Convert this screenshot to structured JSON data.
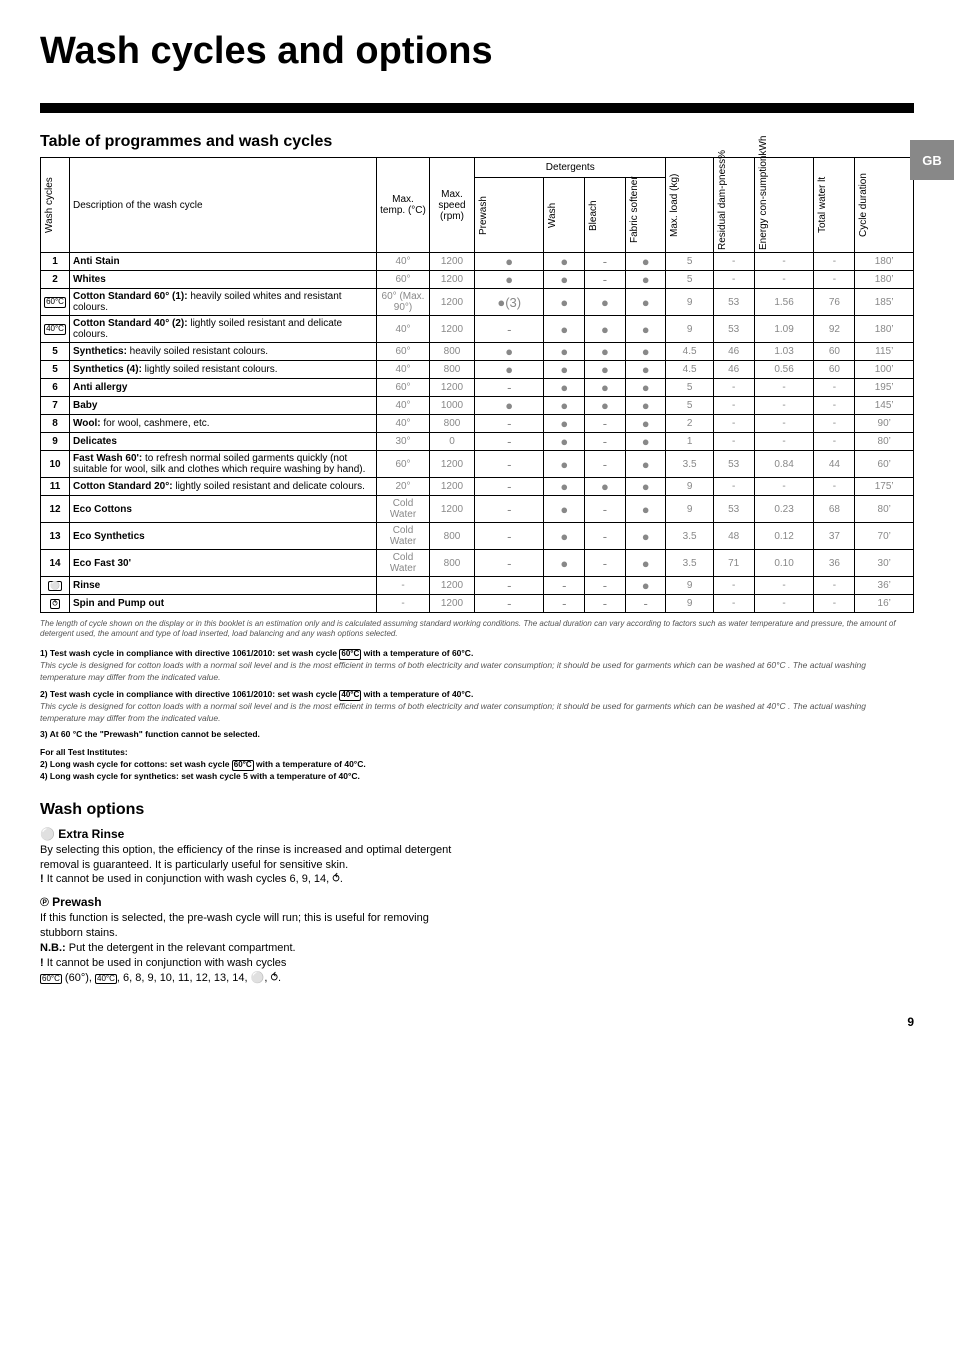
{
  "tab": "GB",
  "title": "Wash cycles and options",
  "section1_title": "Table of programmes and wash cycles",
  "headers": {
    "wash_cycles": "Wash cycles",
    "description": "Description of the wash cycle",
    "max_temp": "Max. temp. (°C)",
    "max_speed": "Max. speed (rpm)",
    "detergents": "Detergents",
    "prewash": "Prewash",
    "wash": "Wash",
    "bleach": "Bleach",
    "fabric_softener": "Fabric softener",
    "max_load": "Max. load (kg)",
    "residual": "Residual dam-pness%",
    "energy": "Energy con-sumptionkWh",
    "water": "Total water lt",
    "duration": "Cycle duration"
  },
  "rows": [
    {
      "n": "1",
      "d": "Anti Stain",
      "t": "40°",
      "s": "1200",
      "pw": "●",
      "w": "●",
      "bl": "-",
      "fs": "●",
      "ml": "5",
      "rd": "-",
      "en": "-",
      "wa": "-",
      "du": "180’",
      "gray": true,
      "bold": true
    },
    {
      "n": "2",
      "d": "Whites",
      "t": "60°",
      "s": "1200",
      "pw": "●",
      "w": "●",
      "bl": "-",
      "fs": "●",
      "ml": "5",
      "rd": "-",
      "en": "-",
      "wa": "-",
      "du": "180’",
      "gray": true,
      "bold": true
    },
    {
      "n": "60°C",
      "sym": true,
      "d": "<b>Cotton Standard 60° (1):</b> heavily soiled whites and resistant colours.",
      "t": "60° (Max. 90°)",
      "s": "1200",
      "pw": "●(3)",
      "w": "●",
      "bl": "●",
      "fs": "●",
      "ml": "9",
      "rd": "53",
      "en": "1.56",
      "wa": "76",
      "du": "185’",
      "gray": true
    },
    {
      "n": "40°C",
      "sym": true,
      "d": "<b>Cotton Standard 40° (2):</b> lightly soiled resistant and delicate colours.",
      "t": "40°",
      "s": "1200",
      "pw": "-",
      "w": "●",
      "bl": "●",
      "fs": "●",
      "ml": "9",
      "rd": "53",
      "en": "1.09",
      "wa": "92",
      "du": "180’",
      "gray": true
    },
    {
      "n": "5",
      "d": "<b>Synthetics:</b> heavily soiled resistant colours.",
      "t": "60°",
      "s": "800",
      "pw": "●",
      "w": "●",
      "bl": "●",
      "fs": "●",
      "ml": "4.5",
      "rd": "46",
      "en": "1.03",
      "wa": "60",
      "du": "115’",
      "gray": true
    },
    {
      "n": "5",
      "d": "<b>Synthetics (4):</b> lightly soiled resistant colours.",
      "t": "40°",
      "s": "800",
      "pw": "●",
      "w": "●",
      "bl": "●",
      "fs": "●",
      "ml": "4.5",
      "rd": "46",
      "en": "0.56",
      "wa": "60",
      "du": "100’",
      "gray": true
    },
    {
      "n": "6",
      "d": "Anti allergy",
      "t": "60°",
      "s": "1200",
      "pw": "-",
      "w": "●",
      "bl": "●",
      "fs": "●",
      "ml": "5",
      "rd": "-",
      "en": "-",
      "wa": "-",
      "du": "195’",
      "gray": true,
      "bold": true
    },
    {
      "n": "7",
      "d": "Baby",
      "t": "40°",
      "s": "1000",
      "pw": "●",
      "w": "●",
      "bl": "●",
      "fs": "●",
      "ml": "5",
      "rd": "-",
      "en": "-",
      "wa": "-",
      "du": "145’",
      "gray": true,
      "bold": true
    },
    {
      "n": "8",
      "d": "<b>Wool:</b> for wool, cashmere, etc.",
      "t": "40°",
      "s": "800",
      "pw": "-",
      "w": "●",
      "bl": "-",
      "fs": "●",
      "ml": "2",
      "rd": "-",
      "en": "-",
      "wa": "-",
      "du": "90’",
      "gray": true
    },
    {
      "n": "9",
      "d": "Delicates",
      "t": "30°",
      "s": "0",
      "pw": "-",
      "w": "●",
      "bl": "-",
      "fs": "●",
      "ml": "1",
      "rd": "-",
      "en": "-",
      "wa": "-",
      "du": "80’",
      "gray": true,
      "bold": true
    },
    {
      "n": "10",
      "d": "<b>Fast Wash 60':</b> to refresh normal soiled garments quickly (not suitable for wool, silk and clothes which require washing by hand).",
      "t": "60°",
      "s": "1200",
      "pw": "-",
      "w": "●",
      "bl": "-",
      "fs": "●",
      "ml": "3.5",
      "rd": "53",
      "en": "0.84",
      "wa": "44",
      "du": "60’",
      "gray": true
    },
    {
      "n": "11",
      "d": "<b>Cotton Standard 20°:</b> lightly soiled resistant and delicate colours.",
      "t": "20°",
      "s": "1200",
      "pw": "-",
      "w": "●",
      "bl": "●",
      "fs": "●",
      "ml": "9",
      "rd": "-",
      "en": "-",
      "wa": "-",
      "du": "175’",
      "gray": true
    },
    {
      "n": "12",
      "d": "Eco Cottons",
      "t": "Cold Water",
      "s": "1200",
      "pw": "-",
      "w": "●",
      "bl": "-",
      "fs": "●",
      "ml": "9",
      "rd": "53",
      "en": "0.23",
      "wa": "68",
      "du": "80’",
      "gray": true,
      "bold": true
    },
    {
      "n": "13",
      "d": "Eco Synthetics",
      "t": "Cold Water",
      "s": "800",
      "pw": "-",
      "w": "●",
      "bl": "-",
      "fs": "●",
      "ml": "3.5",
      "rd": "48",
      "en": "0.12",
      "wa": "37",
      "du": "70’",
      "gray": true,
      "bold": true
    },
    {
      "n": "14",
      "d": "Eco Fast 30'",
      "t": "Cold Water",
      "s": "800",
      "pw": "-",
      "w": "●",
      "bl": "-",
      "fs": "●",
      "ml": "3.5",
      "rd": "71",
      "en": "0.10",
      "wa": "36",
      "du": "30’",
      "gray": true,
      "bold": true
    },
    {
      "n": "⚪",
      "sym": true,
      "d": "Rinse",
      "t": "-",
      "s": "1200",
      "pw": "-",
      "w": "-",
      "bl": "-",
      "fs": "●",
      "ml": "9",
      "rd": "-",
      "en": "-",
      "wa": "-",
      "du": "36’",
      "gray": true,
      "bold": true
    },
    {
      "n": "⥀",
      "sym": true,
      "d": "Spin and Pump out",
      "t": "-",
      "s": "1200",
      "pw": "-",
      "w": "-",
      "bl": "-",
      "fs": "-",
      "ml": "9",
      "rd": "-",
      "en": "-",
      "wa": "-",
      "du": "16’",
      "gray": true,
      "bold": true
    }
  ],
  "footnote_main": "The length of cycle shown on the display or in this booklet is an estimation only and is calculated assuming standard working conditions. The actual duration can vary according to factors such as water temperature and pressure, the amount of detergent used, the amount and type of load inserted, load balancing and any wash options selected.",
  "test1_b": "1) Test wash cycle in compliance with directive 1061/2010: set wash cycle ",
  "test1_temp": "60°C",
  "test1_b2": " with a temperature of 60°C.",
  "test1_it": "This cycle is designed for cotton loads with a normal soil level and is the most efficient in terms of both electricity and water consumption; it should be used for garments which can be washed at 60°C . The actual washing temperature may differ from the indicated value.",
  "test2_b": "2) Test wash cycle in compliance with directive 1061/2010: set wash cycle ",
  "test2_temp": "40°C",
  "test2_b2": " with a temperature of 40°C.",
  "test2_it": "This cycle is designed for cotton loads with a normal soil level and is the most efficient in terms of both electricity and water consumption; it should be used for garments which can be washed at 40°C . The actual washing temperature may differ from the indicated value.",
  "test3": "3) At 60 °C the \"Prewash\" function cannot be selected.",
  "inst_h": "For all Test Institutes:",
  "inst2a": "2) Long wash cycle for cottons: set wash cycle ",
  "inst2_temp": "60°C",
  "inst2b": " with a temperature of 40°C.",
  "inst4": "4) Long wash cycle for synthetics: set wash cycle 5 with a temperature of 40°C.",
  "wash_options_h": "Wash options",
  "extra_rinse_h": " Extra Rinse",
  "extra_rinse_icon": "⚪",
  "extra_rinse_p1": "By selecting this option, the efficiency of the rinse is increased and optimal detergent removal is guaranteed. It is particularly useful for sensitive skin.",
  "extra_rinse_p2a": "!",
  "extra_rinse_p2b": " It cannot be used in conjunction with wash cycles 6, 9, 14, ",
  "extra_rinse_p2c": ".",
  "prewash_icon": "℗",
  "prewash_h": " Prewash",
  "prewash_p1": "If this function is selected, the pre-wash cycle will run; this is useful for removing stubborn stains.",
  "prewash_nb": "N.B.:",
  "prewash_nb_txt": " Put the detergent in the relevant compartment.",
  "prewash_p2a": "!",
  "prewash_p2b": " It cannot be used in conjunction with wash cycles ",
  "prewash_list": " (60°), ",
  "prewash_temp1": "60°C",
  "prewash_temp2": "40°C",
  "prewash_rest": ", 6, 8, 9, 10, 11, 12, 13, 14, ",
  "prewash_end": ".",
  "pagenum": "9"
}
